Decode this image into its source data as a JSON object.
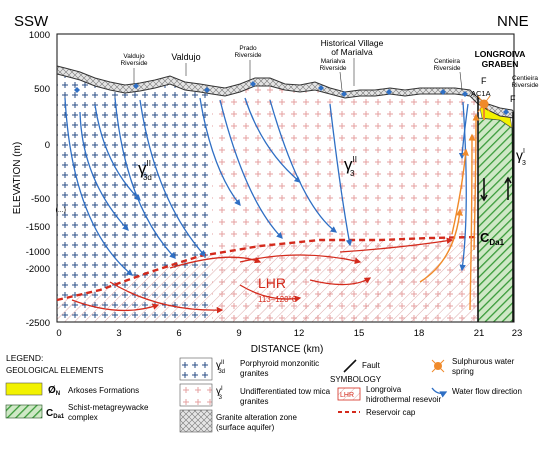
{
  "directions": {
    "left": "SSW",
    "right": "NNE"
  },
  "y_axis": {
    "label": "ELEVATION (m)",
    "ticks": [
      "1000",
      "500",
      "0",
      "-500",
      "-1000",
      "-1500",
      "-2000",
      "-2500"
    ],
    "partial_label": "(...)"
  },
  "x_axis": {
    "label": "DISTANCE (km)",
    "ticks": [
      "0",
      "3",
      "6",
      "9",
      "12",
      "15",
      "18",
      "21",
      "23"
    ]
  },
  "places": {
    "valdujo_riverside": [
      "Valdujo",
      "Riverside"
    ],
    "valdujo": "Valdujo",
    "prado_riverside": [
      "Prado",
      "Riverside"
    ],
    "historical_village": [
      "Historical Village",
      "of Marialva"
    ],
    "marialva_riverside": [
      "Marialva",
      "Riverside"
    ],
    "centieira_riverside_left": [
      "Centieira",
      "Riverside"
    ],
    "longroiva_graben": [
      "LONGROIVA",
      "GRABEN"
    ],
    "centieira_riverside_right": [
      "Centieira",
      "Riverside"
    ]
  },
  "labels": {
    "gamma_left": "γ",
    "gamma_left_sup": "II",
    "gamma_left_sub": "3d",
    "gamma_mid": "γ",
    "gamma_mid_sup": "II",
    "gamma_mid_sub": "3",
    "gamma_right": "γ",
    "gamma_right_sup": "I",
    "gamma_right_sub": "3",
    "fault_f1": "F",
    "fault_f2": "F",
    "well": "AC1A",
    "cda": "C",
    "cda_sub": "Da1",
    "lhr": "LHR",
    "lhr_temp": "113–120°C"
  },
  "legend": {
    "title": "LEGEND:",
    "geo_title": "GEOLOGICAL ELEMENTS",
    "arkoses_symbol": "Ø",
    "arkoses_symbol_sub": "N",
    "arkoses": "Arkoses Formations",
    "schist_symbol": "C",
    "schist_symbol_sub": "Da1",
    "schist": [
      "Schist-metagreywacke",
      "complex"
    ],
    "porph_symbol": "γ",
    "porph_sup": "II",
    "porph_sub": "3d",
    "porph": [
      "Porphyroid monzonitic",
      "granites"
    ],
    "undiff_symbol": "γ",
    "undiff_sup": "I",
    "undiff_sub": "3",
    "undiff": [
      "Undifferentiated tow mica",
      "granites"
    ],
    "alteration": [
      "Granite alteration zone",
      "(surface aquifer)"
    ],
    "fault": "Fault",
    "symbology": "SYMBOLOGY",
    "lhr_box": "LHR",
    "lhr_desc": [
      "Longroiva",
      "hidrothermal resevoir"
    ],
    "reservoir_cap": "Reservoir cap",
    "spring": [
      "Sulphurous water",
      "spring"
    ],
    "water_flow": "Water flow direction"
  },
  "colors": {
    "blue_flow": "#2f6fc4",
    "red_flow": "#d42a1c",
    "orange_flow": "#f08a2a",
    "arkose": "#f2f200",
    "schist": "#3a9b3a",
    "undiff_plus": "#e6a0a0",
    "porph_plus": "#2a4c86"
  }
}
